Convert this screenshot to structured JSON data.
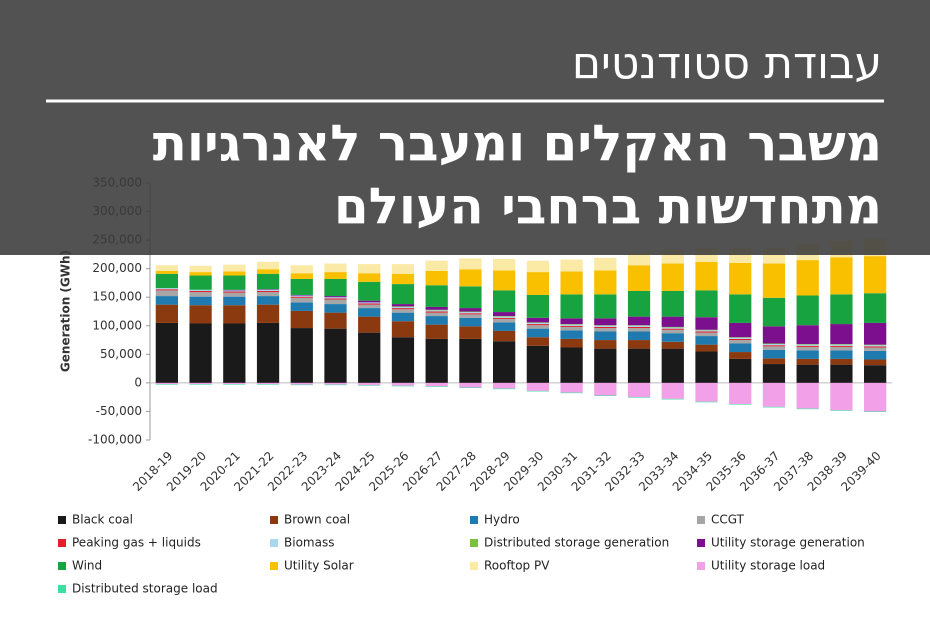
{
  "overlay": {
    "label": "עבודת סטודנטים",
    "headline": [
      "משבר האקלים ומעבר לאנרגיות",
      "מתחדשות ברחבי העולם"
    ]
  },
  "chart_data": {
    "type": "stacked_bar",
    "y_label": "Generation (GWh)",
    "categories": [
      "2018-19",
      "2019-20",
      "2020-21",
      "2021-22",
      "2022-23",
      "2023-24",
      "2024-25",
      "2025-26",
      "2026-27",
      "2027-28",
      "2028-29",
      "2029-30",
      "2030-31",
      "2031-32",
      "2032-33",
      "2033-34",
      "2034-35",
      "2035-36",
      "2036-37",
      "2037-38",
      "2038-39",
      "2039-40"
    ],
    "ylim": [
      -100000,
      350000
    ],
    "yticks": [
      {
        "value": -100000,
        "label": "-100,000"
      },
      {
        "value": -50000,
        "label": "-50,000"
      },
      0,
      {
        "value": 50000,
        "label": "50,000"
      },
      {
        "value": 100000,
        "label": "100,000"
      },
      {
        "value": 150000,
        "label": "150,000"
      },
      {
        "value": 200000,
        "label": "200,000"
      },
      {
        "value": 250000,
        "label": "250,000"
      },
      {
        "value": 300000,
        "label": "300,000"
      },
      {
        "value": 350000,
        "label": "350,000"
      }
    ],
    "grid": false,
    "series": [
      {
        "name": "Black coal",
        "color": "#1a1a1a",
        "values": [
          105000,
          104000,
          104000,
          105000,
          96000,
          95000,
          88000,
          80000,
          77000,
          77000,
          73000,
          65000,
          62000,
          60000,
          60000,
          60000,
          55000,
          42000,
          33000,
          32000,
          32000,
          31000
        ]
      },
      {
        "name": "Brown coal",
        "color": "#8b3a0f",
        "values": [
          32000,
          32000,
          32000,
          32000,
          30000,
          28000,
          28000,
          28000,
          25000,
          22000,
          18000,
          15000,
          15000,
          15000,
          15000,
          12000,
          12000,
          12000,
          10000,
          10000,
          10000,
          10000
        ]
      },
      {
        "name": "Hydro",
        "color": "#1f7ab0",
        "values": [
          15000,
          15000,
          15000,
          15000,
          15000,
          15000,
          15000,
          15000,
          15000,
          15000,
          15000,
          15000,
          15000,
          15000,
          15000,
          15000,
          15000,
          15000,
          15000,
          15000,
          15000,
          15000
        ]
      },
      {
        "name": "CCGT",
        "color": "#a6a6a6",
        "values": [
          10000,
          8000,
          7000,
          7000,
          8000,
          8000,
          6000,
          6000,
          6000,
          6000,
          6000,
          6000,
          6000,
          6000,
          6000,
          6000,
          6000,
          6000,
          6000,
          6000,
          6000,
          6000
        ]
      },
      {
        "name": "Peaking gas + liquids",
        "color": "#e0202a",
        "values": [
          2000,
          2000,
          2000,
          2000,
          2000,
          2000,
          2000,
          2000,
          2000,
          2000,
          2000,
          2000,
          2000,
          2000,
          2000,
          2000,
          2000,
          2000,
          2000,
          2000,
          2000,
          2000
        ]
      },
      {
        "name": "Biomass",
        "color": "#a8d8ef",
        "values": [
          2000,
          2000,
          2000,
          2000,
          2000,
          2000,
          2000,
          2000,
          2000,
          2000,
          2000,
          2000,
          2000,
          2000,
          2000,
          2000,
          2000,
          2000,
          2000,
          2000,
          2000,
          2000
        ]
      },
      {
        "name": "Distributed storage generation",
        "color": "#7ac142",
        "values": [
          0,
          0,
          0,
          0,
          0,
          0,
          0,
          1000,
          1000,
          1000,
          1000,
          1000,
          1000,
          1000,
          1000,
          1000,
          1000,
          1000,
          1000,
          1000,
          1000,
          1000
        ]
      },
      {
        "name": "Utility storage generation",
        "color": "#7b0f8e",
        "values": [
          0,
          0,
          1000,
          1000,
          1000,
          2000,
          3000,
          4000,
          5000,
          6000,
          7000,
          8000,
          10000,
          12000,
          15000,
          18000,
          22000,
          25000,
          30000,
          33000,
          35000,
          38000
        ]
      },
      {
        "name": "Wind",
        "color": "#17a340",
        "values": [
          25000,
          25000,
          25000,
          27000,
          28000,
          30000,
          33000,
          35000,
          38000,
          38000,
          38000,
          40000,
          42000,
          42000,
          45000,
          45000,
          47000,
          50000,
          50000,
          52000,
          52000,
          52000
        ]
      },
      {
        "name": "Utility Solar",
        "color": "#f9c000",
        "values": [
          5000,
          6000,
          7000,
          8000,
          10000,
          12000,
          15000,
          18000,
          25000,
          30000,
          35000,
          40000,
          40000,
          42000,
          45000,
          48000,
          50000,
          55000,
          60000,
          62000,
          65000,
          65000
        ]
      },
      {
        "name": "Rooftop PV",
        "color": "#fbe9a6",
        "values": [
          10000,
          11000,
          12000,
          13000,
          14000,
          15000,
          16000,
          17000,
          18000,
          19000,
          20000,
          20000,
          21000,
          22000,
          23000,
          24000,
          25000,
          26000,
          27000,
          28000,
          29000,
          30000
        ]
      },
      {
        "name": "Utility storage load",
        "color": "#f2a1e8",
        "values": [
          -2000,
          -2000,
          -2000,
          -2000,
          -3000,
          -3000,
          -4000,
          -5000,
          -6000,
          -8000,
          -10000,
          -14000,
          -17000,
          -22000,
          -25000,
          -28000,
          -33000,
          -37000,
          -42000,
          -45000,
          -48000,
          -50000
        ]
      },
      {
        "name": "Distributed storage load",
        "color": "#3be0a0",
        "values": [
          -1000,
          -1000,
          -1000,
          -1000,
          -1000,
          -1000,
          -1000,
          -1000,
          -1000,
          -1000,
          -1000,
          -1000,
          -1000,
          -1000,
          -1000,
          -1000,
          -1000,
          -1000,
          -1000,
          -1000,
          -1000,
          -1000
        ]
      }
    ]
  }
}
